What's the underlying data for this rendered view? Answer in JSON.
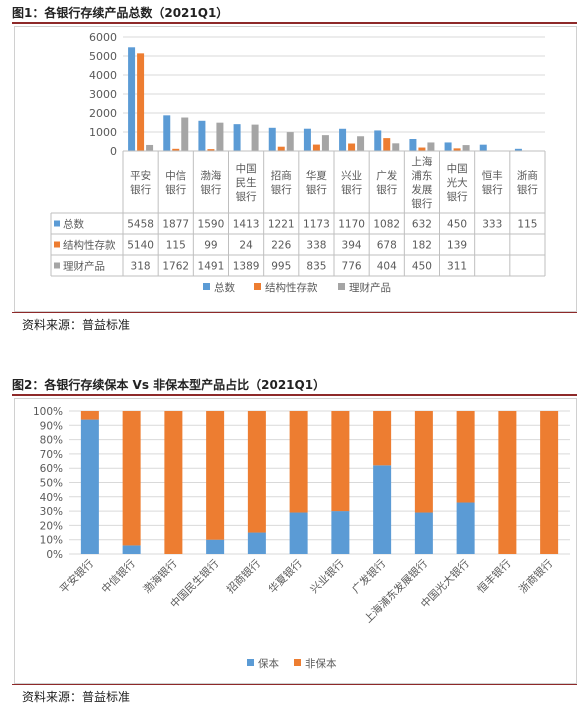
{
  "figure1": {
    "title": "图1：各银行存续产品总数（2021Q1）",
    "source": "资料来源：普益标准",
    "chart_data": {
      "type": "bar",
      "categories": [
        "平安银行",
        "中信银行",
        "渤海银行",
        "中国民生银行",
        "招商银行",
        "华夏银行",
        "兴业银行",
        "广发银行",
        "上海浦东发展银行",
        "中国光大银行",
        "恒丰银行",
        "浙商银行"
      ],
      "category_labels": [
        "平安\n银行",
        "中信\n银行",
        "渤海\n银行",
        "中国\n民生\n银行",
        "招商\n银行",
        "华夏\n银行",
        "兴业\n银行",
        "广发\n银行",
        "上海\n浦东\n发展\n银行",
        "中国\n光大\n银行",
        "恒丰\n银行",
        "浙商\n银行"
      ],
      "series": [
        {
          "name": "总数",
          "color": "#5b9bd5",
          "values": [
            5458,
            1877,
            1590,
            1413,
            1221,
            1173,
            1170,
            1082,
            632,
            450,
            333,
            115
          ]
        },
        {
          "name": "结构性存款",
          "color": "#ed7d31",
          "values": [
            5140,
            115,
            99,
            24,
            226,
            338,
            394,
            678,
            182,
            139,
            null,
            null
          ]
        },
        {
          "name": "理财产品",
          "color": "#a5a5a5",
          "values": [
            318,
            1762,
            1491,
            1389,
            995,
            835,
            776,
            404,
            450,
            311,
            null,
            null
          ]
        }
      ],
      "ylim": [
        0,
        6000
      ],
      "yticks": [
        0,
        1000,
        2000,
        3000,
        4000,
        5000,
        6000
      ],
      "grid": true,
      "data_table": true,
      "legend": "bottom"
    }
  },
  "figure2": {
    "title": "图2：各银行存续保本 Vs 非保本型产品占比（2021Q1）",
    "source": "资料来源：普益标准",
    "chart_data": {
      "type": "bar",
      "stacked": "percent",
      "categories": [
        "平安银行",
        "中信银行",
        "渤海银行",
        "中国民生银行",
        "招商银行",
        "华夏银行",
        "兴业银行",
        "广发银行",
        "上海浦东发展银行",
        "中国光大银行",
        "恒丰银行",
        "浙商银行"
      ],
      "series": [
        {
          "name": "保本",
          "color": "#5b9bd5",
          "values": [
            94,
            6,
            0,
            10,
            15,
            29,
            30,
            62,
            29,
            36,
            0,
            0
          ]
        },
        {
          "name": "非保本",
          "color": "#ed7d31",
          "values": [
            6,
            94,
            100,
            90,
            85,
            71,
            70,
            38,
            71,
            64,
            100,
            100
          ]
        }
      ],
      "ylim": [
        0,
        100
      ],
      "yticks": [
        "0%",
        "10%",
        "20%",
        "30%",
        "40%",
        "50%",
        "60%",
        "70%",
        "80%",
        "90%",
        "100%"
      ],
      "grid": true,
      "legend": "bottom"
    }
  }
}
